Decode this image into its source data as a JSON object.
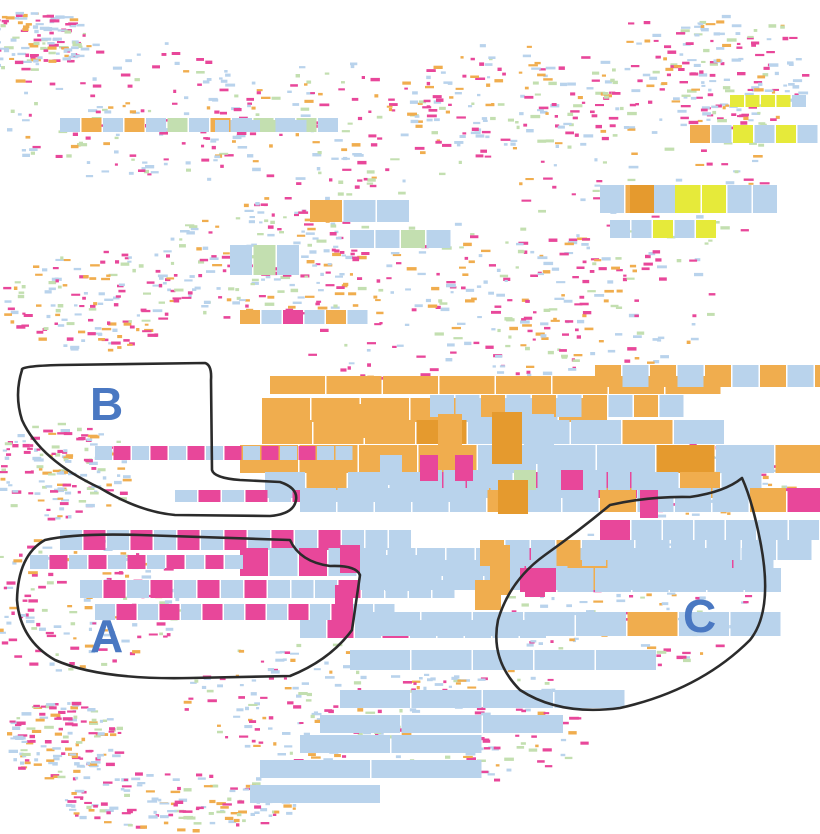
{
  "regions": {
    "a": {
      "label": "A"
    },
    "b": {
      "label": "B"
    },
    "c": {
      "label": "C"
    }
  },
  "colors": {
    "region_label": "#4a78c2",
    "outline": "#2b2b2b",
    "blue": "#b9d3ec",
    "orange": "#f0ad4e",
    "orange_dark": "#e59a2e",
    "pink": "#e8479a",
    "green": "#c3dfb0",
    "yellow": "#e6ea3a"
  }
}
